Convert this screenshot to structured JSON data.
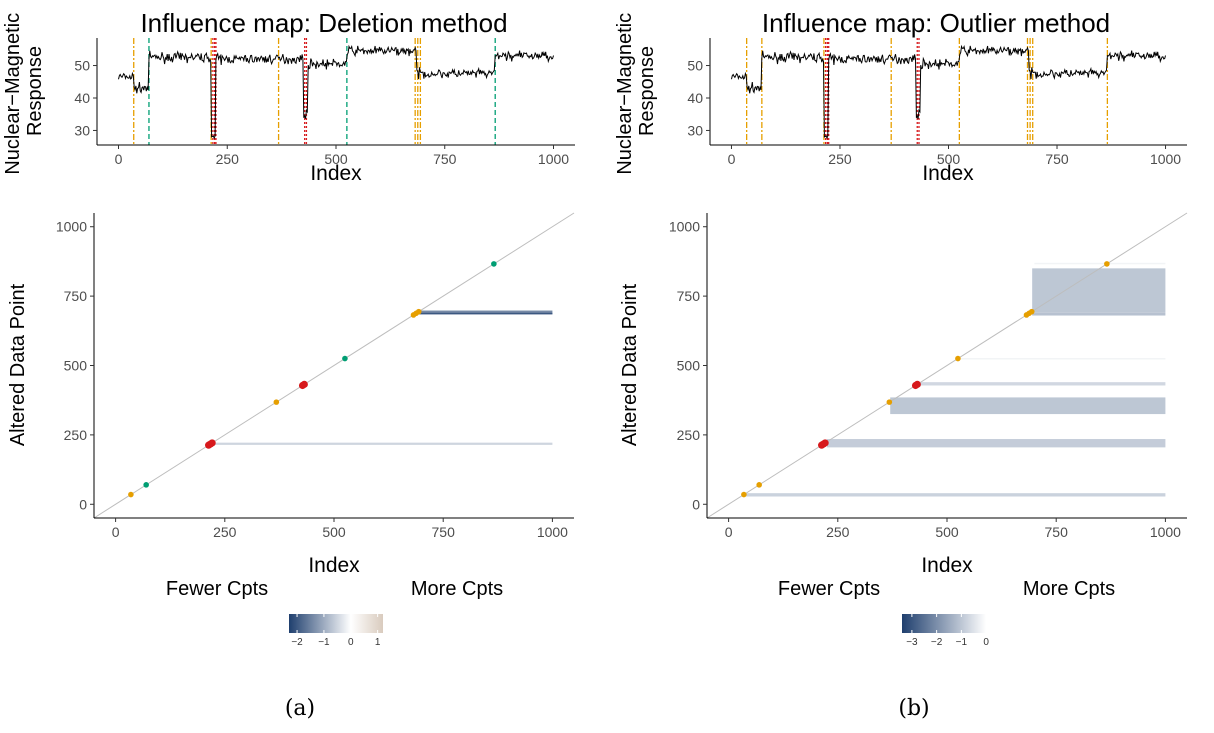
{
  "chart_data": [
    {
      "panel": "a",
      "type": "line",
      "title": "Influence map: Deletion method",
      "xlabel": "Index",
      "ylabel": "Nuclear−Magnetic Response",
      "ylabel_lines": [
        "Nuclear−Magnetic",
        "Response"
      ],
      "xlim": [
        0,
        1000
      ],
      "ylim": [
        27,
        57
      ],
      "x_ticks": [
        0,
        250,
        500,
        750,
        1000
      ],
      "y_ticks": [
        30,
        40,
        50
      ],
      "grid": false,
      "series": [
        {
          "segments": [
            {
              "from": 0,
              "to": 35,
              "level": 46.5
            },
            {
              "from": 35,
              "to": 70,
              "level": 43
            },
            {
              "from": 70,
              "to": 213,
              "level": 52.5
            },
            {
              "from": 213,
              "to": 223,
              "level": 28
            },
            {
              "from": 223,
              "to": 425,
              "level": 52
            },
            {
              "from": 425,
              "to": 435,
              "level": 35
            },
            {
              "from": 435,
              "to": 525,
              "level": 50.5
            },
            {
              "from": 525,
              "to": 685,
              "level": 54.5
            },
            {
              "from": 685,
              "to": 866,
              "level": 47.5
            },
            {
              "from": 866,
              "to": 1000,
              "level": 53
            }
          ]
        }
      ],
      "changepoint_lines": [
        {
          "x": 35,
          "class": "orange"
        },
        {
          "x": 70,
          "class": "green"
        },
        {
          "x": 213,
          "class": "orange"
        },
        {
          "x": 217,
          "class": "red"
        },
        {
          "x": 221,
          "class": "red"
        },
        {
          "x": 224,
          "class": "red"
        },
        {
          "x": 368,
          "class": "orange"
        },
        {
          "x": 428,
          "class": "red"
        },
        {
          "x": 432,
          "class": "red"
        },
        {
          "x": 525,
          "class": "green"
        },
        {
          "x": 682,
          "class": "orange"
        },
        {
          "x": 688,
          "class": "orange"
        },
        {
          "x": 694,
          "class": "orange"
        },
        {
          "x": 866,
          "class": "green"
        }
      ]
    },
    {
      "panel": "b",
      "type": "line",
      "title": "Influence map: Outlier method",
      "xlabel": "Index",
      "ylabel": "Nuclear−Magnetic Response",
      "ylabel_lines": [
        "Nuclear−Magnetic",
        "Response"
      ],
      "xlim": [
        0,
        1000
      ],
      "ylim": [
        27,
        57
      ],
      "x_ticks": [
        0,
        250,
        500,
        750,
        1000
      ],
      "y_ticks": [
        30,
        40,
        50
      ],
      "grid": false,
      "series": [
        {
          "segments": [
            {
              "from": 0,
              "to": 35,
              "level": 46.5
            },
            {
              "from": 35,
              "to": 70,
              "level": 43
            },
            {
              "from": 70,
              "to": 213,
              "level": 52.5
            },
            {
              "from": 213,
              "to": 223,
              "level": 28
            },
            {
              "from": 223,
              "to": 425,
              "level": 52
            },
            {
              "from": 425,
              "to": 435,
              "level": 35
            },
            {
              "from": 435,
              "to": 525,
              "level": 50.5
            },
            {
              "from": 525,
              "to": 685,
              "level": 54.5
            },
            {
              "from": 685,
              "to": 866,
              "level": 47.5
            },
            {
              "from": 866,
              "to": 1000,
              "level": 53
            }
          ]
        }
      ],
      "changepoint_lines": [
        {
          "x": 35,
          "class": "orange"
        },
        {
          "x": 70,
          "class": "orange"
        },
        {
          "x": 213,
          "class": "orange"
        },
        {
          "x": 217,
          "class": "red"
        },
        {
          "x": 221,
          "class": "red"
        },
        {
          "x": 224,
          "class": "red"
        },
        {
          "x": 368,
          "class": "orange"
        },
        {
          "x": 428,
          "class": "red"
        },
        {
          "x": 432,
          "class": "red"
        },
        {
          "x": 525,
          "class": "orange"
        },
        {
          "x": 682,
          "class": "orange"
        },
        {
          "x": 688,
          "class": "orange"
        },
        {
          "x": 694,
          "class": "orange"
        },
        {
          "x": 866,
          "class": "orange"
        }
      ]
    },
    {
      "panel": "a",
      "type": "heatmap",
      "xlabel": "Index",
      "ylabel": "Altered Data Point",
      "xlim": [
        0,
        1000
      ],
      "ylim": [
        0,
        1000
      ],
      "x_ticks": [
        0,
        250,
        500,
        750,
        1000
      ],
      "y_ticks": [
        0,
        250,
        500,
        750,
        1000
      ],
      "grid": false,
      "points": [
        {
          "x": 35,
          "y": 35,
          "class": "orange"
        },
        {
          "x": 70,
          "y": 70,
          "class": "green"
        },
        {
          "x": 213,
          "y": 213,
          "class": "red"
        },
        {
          "x": 217,
          "y": 217,
          "class": "red"
        },
        {
          "x": 221,
          "y": 221,
          "class": "red"
        },
        {
          "x": 368,
          "y": 368,
          "class": "orange"
        },
        {
          "x": 428,
          "y": 428,
          "class": "red"
        },
        {
          "x": 432,
          "y": 432,
          "class": "red"
        },
        {
          "x": 525,
          "y": 525,
          "class": "green"
        },
        {
          "x": 682,
          "y": 682,
          "class": "orange"
        },
        {
          "x": 688,
          "y": 688,
          "class": "orange"
        },
        {
          "x": 694,
          "y": 694,
          "class": "orange"
        },
        {
          "x": 866,
          "y": 866,
          "class": "green"
        }
      ],
      "bands": [
        {
          "x_from": 695,
          "x_to": 1000,
          "y_from": 684,
          "y_to": 698,
          "value": -1.4
        },
        {
          "x_from": 695,
          "x_to": 1000,
          "y_from": 688,
          "y_to": 690,
          "value": -2.0
        },
        {
          "x_from": 225,
          "x_to": 1000,
          "y_from": 214,
          "y_to": 222,
          "value": -0.5
        }
      ],
      "legend": {
        "left_label": "Fewer Cpts",
        "right_label": "More Cpts",
        "ticks": [
          "−2",
          "−1",
          "0",
          "1"
        ],
        "range": [
          -2.3,
          1.2
        ]
      }
    },
    {
      "panel": "b",
      "type": "heatmap",
      "xlabel": "Index",
      "ylabel": "Altered Data Point",
      "xlim": [
        0,
        1000
      ],
      "ylim": [
        0,
        1000
      ],
      "x_ticks": [
        0,
        250,
        500,
        750,
        1000
      ],
      "y_ticks": [
        0,
        250,
        500,
        750,
        1000
      ],
      "grid": false,
      "points": [
        {
          "x": 35,
          "y": 35,
          "class": "orange"
        },
        {
          "x": 70,
          "y": 70,
          "class": "orange"
        },
        {
          "x": 213,
          "y": 213,
          "class": "red"
        },
        {
          "x": 217,
          "y": 217,
          "class": "red"
        },
        {
          "x": 221,
          "y": 221,
          "class": "red"
        },
        {
          "x": 368,
          "y": 368,
          "class": "orange"
        },
        {
          "x": 428,
          "y": 428,
          "class": "red"
        },
        {
          "x": 432,
          "y": 432,
          "class": "red"
        },
        {
          "x": 525,
          "y": 525,
          "class": "orange"
        },
        {
          "x": 682,
          "y": 682,
          "class": "orange"
        },
        {
          "x": 688,
          "y": 688,
          "class": "orange"
        },
        {
          "x": 694,
          "y": 694,
          "class": "orange"
        },
        {
          "x": 866,
          "y": 866,
          "class": "orange"
        }
      ],
      "bands": [
        {
          "x_from": 695,
          "x_to": 1000,
          "y_from": 690,
          "y_to": 850,
          "value": -1.0
        },
        {
          "x_from": 695,
          "x_to": 1000,
          "y_from": 680,
          "y_to": 690,
          "value": -1.1
        },
        {
          "x_from": 700,
          "x_to": 1000,
          "y_from": 866,
          "y_to": 870,
          "value": -0.2
        },
        {
          "x_from": 370,
          "x_to": 1000,
          "y_from": 325,
          "y_to": 385,
          "value": -1.0
        },
        {
          "x_from": 435,
          "x_to": 1000,
          "y_from": 428,
          "y_to": 440,
          "value": -0.7
        },
        {
          "x_from": 225,
          "x_to": 1000,
          "y_from": 205,
          "y_to": 235,
          "value": -0.9
        },
        {
          "x_from": 530,
          "x_to": 1000,
          "y_from": 524,
          "y_to": 527,
          "value": -0.2
        },
        {
          "x_from": 40,
          "x_to": 1000,
          "y_from": 28,
          "y_to": 40,
          "value": -0.8
        }
      ],
      "legend": {
        "left_label": "Fewer Cpts",
        "right_label": "More Cpts",
        "ticks": [
          "−3",
          "−2",
          "−1",
          "0"
        ],
        "range": [
          -3.4,
          0.4
        ]
      }
    }
  ],
  "colors": {
    "orange": "#E69F00",
    "green": "#009E73",
    "red": "#D7191C",
    "negative_end": "#1F3F6E",
    "neutral": "#FFFFFF",
    "positive_end": "#D9CBBE",
    "diagonal": "#BDBDBD"
  },
  "captions": {
    "a": "(a)",
    "b": "(b)"
  }
}
